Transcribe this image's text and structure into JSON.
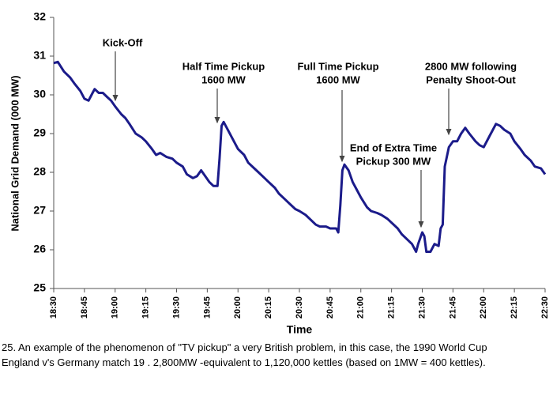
{
  "chart_data": {
    "type": "line",
    "ylabel": "National Grid Demand (000 MW)",
    "xlabel": "Time",
    "x": [
      "18:30",
      "18:32",
      "18:35",
      "18:38",
      "18:40",
      "18:43",
      "18:45",
      "18:47",
      "18:49",
      "18:50",
      "18:52",
      "18:54",
      "18:56",
      "18:58",
      "19:00",
      "19:03",
      "19:05",
      "19:07",
      "19:10",
      "19:13",
      "19:15",
      "19:18",
      "19:20",
      "19:22",
      "19:25",
      "19:28",
      "19:30",
      "19:33",
      "19:35",
      "19:38",
      "19:40",
      "19:42",
      "19:44",
      "19:46",
      "19:48",
      "19:50",
      "19:51",
      "19:52",
      "19:53",
      "19:55",
      "19:58",
      "20:00",
      "20:03",
      "20:05",
      "20:08",
      "20:10",
      "20:13",
      "20:15",
      "20:18",
      "20:20",
      "20:23",
      "20:25",
      "20:28",
      "20:30",
      "20:33",
      "20:35",
      "20:38",
      "20:40",
      "20:43",
      "20:45",
      "20:48",
      "20:49",
      "20:50",
      "20:51",
      "20:52",
      "20:54",
      "20:56",
      "20:58",
      "21:00",
      "21:03",
      "21:05",
      "21:08",
      "21:10",
      "21:13",
      "21:15",
      "21:18",
      "21:20",
      "21:23",
      "21:25",
      "21:27",
      "21:28",
      "21:30",
      "21:31",
      "21:32",
      "21:34",
      "21:36",
      "21:38",
      "21:39",
      "21:40",
      "21:41",
      "21:43",
      "21:45",
      "21:47",
      "21:49",
      "21:51",
      "21:53",
      "21:56",
      "21:58",
      "22:00",
      "22:03",
      "22:06",
      "22:08",
      "22:10",
      "22:13",
      "22:15",
      "22:18",
      "22:20",
      "22:23",
      "22:25",
      "22:28",
      "22:30"
    ],
    "values": [
      30.82,
      30.85,
      30.6,
      30.45,
      30.3,
      30.1,
      29.9,
      29.85,
      30.05,
      30.15,
      30.05,
      30.05,
      29.95,
      29.85,
      29.7,
      29.5,
      29.4,
      29.25,
      29.0,
      28.9,
      28.8,
      28.6,
      28.45,
      28.5,
      28.4,
      28.35,
      28.25,
      28.15,
      27.95,
      27.85,
      27.9,
      28.05,
      27.9,
      27.75,
      27.65,
      27.65,
      28.35,
      29.2,
      29.3,
      29.1,
      28.8,
      28.6,
      28.45,
      28.25,
      28.1,
      28.0,
      27.85,
      27.75,
      27.6,
      27.45,
      27.3,
      27.2,
      27.05,
      27.0,
      26.9,
      26.8,
      26.65,
      26.6,
      26.6,
      26.55,
      26.55,
      26.45,
      27.15,
      28.05,
      28.2,
      28.05,
      27.75,
      27.55,
      27.35,
      27.1,
      27.0,
      26.95,
      26.9,
      26.8,
      26.7,
      26.55,
      26.4,
      26.25,
      26.15,
      25.95,
      26.15,
      26.45,
      26.35,
      25.95,
      25.95,
      26.15,
      26.1,
      26.55,
      26.65,
      28.15,
      28.65,
      28.8,
      28.8,
      29.0,
      29.15,
      29.0,
      28.8,
      28.7,
      28.65,
      28.95,
      29.25,
      29.2,
      29.1,
      29.0,
      28.8,
      28.6,
      28.45,
      28.3,
      28.15,
      28.1,
      27.95
    ],
    "color": "#1b1b8a",
    "xlim": [
      "18:30",
      "22:30"
    ],
    "xticks": [
      "18:30",
      "18:45",
      "19:00",
      "19:15",
      "19:30",
      "19:45",
      "20:00",
      "20:15",
      "20:30",
      "20:45",
      "21:00",
      "21:15",
      "21:30",
      "21:45",
      "22:00",
      "22:15",
      "22:30"
    ],
    "ylim": [
      25,
      32
    ],
    "yticks": [
      25,
      26,
      27,
      28,
      29,
      30,
      31,
      32
    ],
    "grid": false,
    "annotations": [
      [
        "Kick-Off"
      ],
      [
        "Half Time Pickup",
        "1600 MW"
      ],
      [
        "Full Time Pickup",
        "1600 MW"
      ],
      [
        "End of Extra Time",
        "Pickup 300 MW"
      ],
      [
        "2800 MW following",
        "Penalty Shoot-Out"
      ]
    ]
  },
  "caption": [
    "25. An example of the phenomenon of \"TV pickup\" a very British problem, in this case, the 1990 World Cup",
    "England v's Germany match 19 . 2,800MW -equivalent to 1,120,000 kettles (based on 1MW = 400 kettles)."
  ]
}
